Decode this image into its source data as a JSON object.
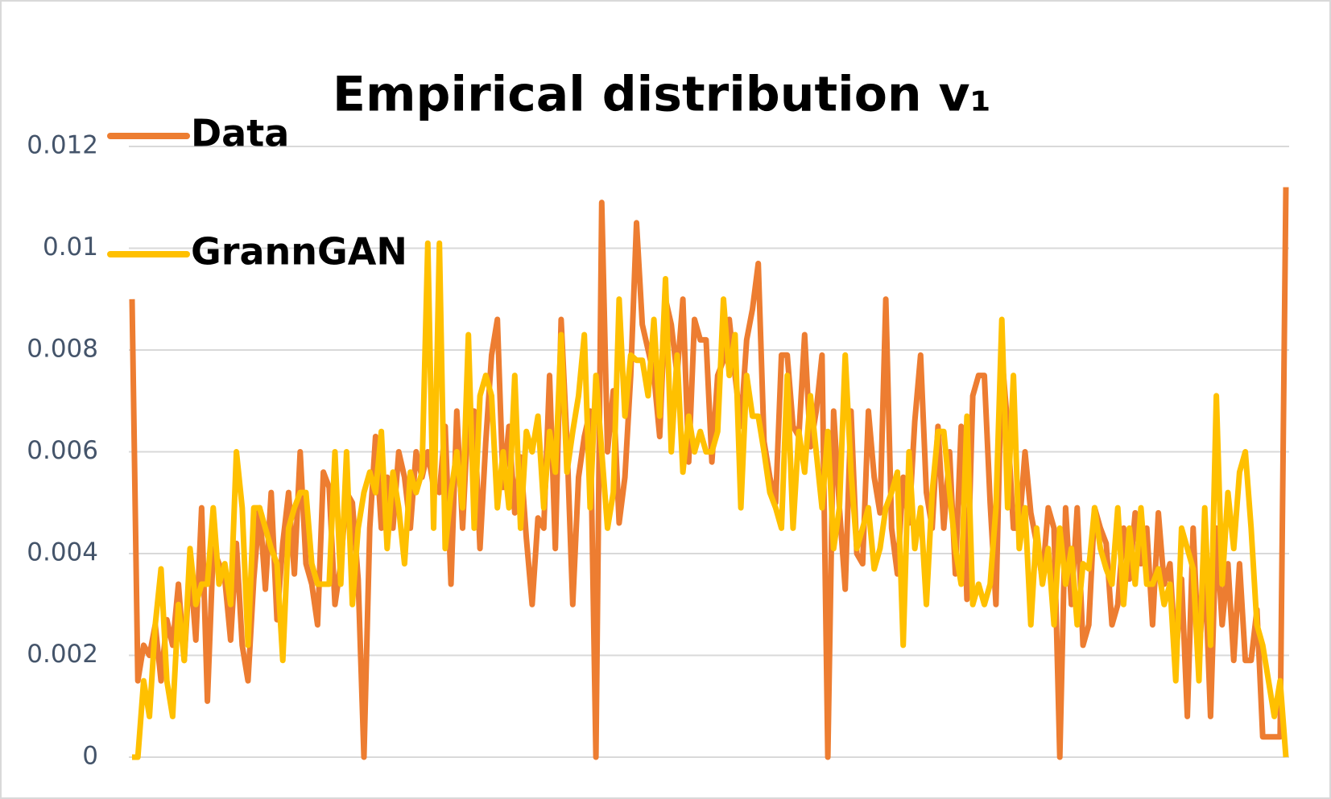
{
  "chart_data": {
    "type": "line",
    "title": "Empirical distribution v₁",
    "categories": [
      null,
      null,
      null,
      null,
      null,
      null,
      null,
      null,
      null,
      null,
      null,
      null,
      null,
      null,
      null,
      null,
      null,
      null,
      null,
      null,
      null,
      null,
      null,
      null,
      null,
      null,
      null,
      null,
      null,
      null,
      null,
      null,
      null,
      null,
      null,
      null,
      null,
      null,
      null,
      null,
      null,
      null,
      null,
      null,
      null,
      null,
      null,
      null,
      null,
      null,
      null,
      null,
      null,
      null,
      null,
      null,
      null,
      null,
      null,
      null,
      null,
      null,
      null,
      null,
      null,
      null,
      null,
      null,
      null,
      null,
      null,
      null,
      null,
      null,
      null,
      null,
      null,
      null,
      null,
      null,
      null,
      null,
      null,
      null,
      null,
      null,
      null,
      null,
      null,
      null,
      null,
      null,
      null,
      null,
      null,
      null,
      null,
      null,
      null,
      null,
      null,
      null,
      null,
      null,
      null,
      null,
      null,
      null,
      null,
      null,
      null,
      null,
      null,
      null,
      null,
      null,
      null,
      null,
      null,
      null,
      null,
      null,
      null,
      null,
      null,
      null,
      null,
      null,
      null,
      null,
      null,
      null,
      null,
      null,
      null,
      null,
      null,
      null,
      null,
      null,
      null,
      null,
      null,
      null,
      null,
      null,
      null,
      null,
      null,
      null,
      null,
      null,
      null,
      null,
      null,
      null,
      null,
      null,
      null,
      null,
      null,
      null,
      null,
      null,
      null,
      null,
      null,
      null,
      null,
      null,
      null,
      null,
      null,
      null,
      null,
      null,
      null,
      null,
      null,
      null,
      null,
      null,
      null,
      null,
      null,
      null,
      null,
      null,
      null,
      null,
      null,
      null,
      null,
      null,
      null,
      null,
      null,
      null,
      null,
      null
    ],
    "series": [
      {
        "name": "Data",
        "color": "#ed7d31",
        "values": [
          0.009,
          0.0015,
          0.0022,
          0.002,
          0.0026,
          0.0015,
          0.0027,
          0.0022,
          0.0034,
          0.0019,
          0.0038,
          0.0023,
          0.0049,
          0.0011,
          0.0041,
          0.0038,
          0.0035,
          0.0023,
          0.0042,
          0.0022,
          0.0015,
          0.0035,
          0.0049,
          0.0033,
          0.0052,
          0.0027,
          0.0042,
          0.0052,
          0.0036,
          0.006,
          0.0038,
          0.0034,
          0.0026,
          0.0056,
          0.0053,
          0.003,
          0.0038,
          0.0052,
          0.005,
          0.0035,
          0,
          0.0045,
          0.0063,
          0.0045,
          0.0055,
          0.0045,
          0.006,
          0.0055,
          0.0045,
          0.006,
          0.0055,
          0.006,
          0.0053,
          0.0052,
          0.0065,
          0.0034,
          0.0068,
          0.0045,
          0.0068,
          0.0068,
          0.0041,
          0.0062,
          0.0079,
          0.0086,
          0.0053,
          0.0065,
          0.0048,
          0.0059,
          0.0043,
          0.003,
          0.0047,
          0.0045,
          0.0075,
          0.0041,
          0.0086,
          0.0062,
          0.003,
          0.0055,
          0.0063,
          0.0068,
          0,
          0.0109,
          0.006,
          0.0072,
          0.0046,
          0.0055,
          0.0075,
          0.0105,
          0.0085,
          0.008,
          0.0075,
          0.0063,
          0.009,
          0.0085,
          0.0075,
          0.009,
          0.0058,
          0.0086,
          0.0082,
          0.0082,
          0.0058,
          0.0075,
          0.0078,
          0.0086,
          0.0075,
          0.0065,
          0.0082,
          0.0088,
          0.0097,
          0.0062,
          0.0055,
          0.005,
          0.0079,
          0.0079,
          0.0065,
          0.0063,
          0.0083,
          0.0061,
          0.0068,
          0.0079,
          0,
          0.0068,
          0.0049,
          0.0033,
          0.0068,
          0.004,
          0.0038,
          0.0068,
          0.0055,
          0.0048,
          0.009,
          0.0045,
          0.0036,
          0.0055,
          0.0046,
          0.0066,
          0.0079,
          0.0052,
          0.0045,
          0.0065,
          0.0045,
          0.006,
          0.0036,
          0.0065,
          0.0031,
          0.0071,
          0.0075,
          0.0075,
          0.005,
          0.003,
          0.0079,
          0.0065,
          0.0045,
          0.0045,
          0.006,
          0.0048,
          0.0042,
          0.0035,
          0.0049,
          0.0045,
          0,
          0.0049,
          0.003,
          0.0049,
          0.0022,
          0.0026,
          0.0049,
          0.0045,
          0.0042,
          0.0026,
          0.003,
          0.0045,
          0.0035,
          0.0048,
          0.0038,
          0.0045,
          0.0026,
          0.0048,
          0.0034,
          0.0038,
          0.0019,
          0.0035,
          0.0008,
          0.0045,
          0.0019,
          0.0038,
          0.0008,
          0.0045,
          0.0026,
          0.0038,
          0.0019,
          0.0038,
          0.0019,
          0.0019,
          0.0029,
          0.0004,
          0.0004,
          0.0004,
          0.0004,
          0.0112
        ]
      },
      {
        "name": "GrannGAN",
        "color": "#ffc000",
        "values": [
          0,
          0,
          0.0015,
          0.0008,
          0.0026,
          0.0037,
          0.0015,
          0.0008,
          0.003,
          0.0019,
          0.0041,
          0.003,
          0.0034,
          0.0034,
          0.0049,
          0.0034,
          0.0038,
          0.003,
          0.006,
          0.0049,
          0.0022,
          0.0049,
          0.0049,
          0.0045,
          0.0041,
          0.0038,
          0.0019,
          0.0045,
          0.0049,
          0.0052,
          0.0052,
          0.0038,
          0.0034,
          0.0034,
          0.0034,
          0.006,
          0.0034,
          0.006,
          0.003,
          0.0045,
          0.0052,
          0.0056,
          0.0052,
          0.0064,
          0.0041,
          0.0056,
          0.0049,
          0.0038,
          0.0056,
          0.0052,
          0.0056,
          0.0101,
          0.0045,
          0.0101,
          0.0041,
          0.0052,
          0.006,
          0.0049,
          0.0083,
          0.0045,
          0.0071,
          0.0075,
          0.0071,
          0.0049,
          0.006,
          0.0049,
          0.0075,
          0.0045,
          0.0064,
          0.006,
          0.0067,
          0.0049,
          0.0064,
          0.0056,
          0.0083,
          0.0056,
          0.0064,
          0.0071,
          0.0083,
          0.0049,
          0.0075,
          0.006,
          0.0045,
          0.0052,
          0.009,
          0.0067,
          0.0079,
          0.0078,
          0.0078,
          0.0071,
          0.0086,
          0.0067,
          0.0094,
          0.006,
          0.0079,
          0.0056,
          0.0067,
          0.006,
          0.0064,
          0.006,
          0.006,
          0.0064,
          0.009,
          0.0075,
          0.0083,
          0.0049,
          0.0075,
          0.0067,
          0.0067,
          0.006,
          0.0052,
          0.0049,
          0.0045,
          0.0075,
          0.0045,
          0.0064,
          0.0056,
          0.0071,
          0.006,
          0.0049,
          0.0064,
          0.0041,
          0.0049,
          0.0079,
          0.0056,
          0.0041,
          0.0045,
          0.0049,
          0.0037,
          0.0041,
          0.0049,
          0.0052,
          0.0056,
          0.0022,
          0.006,
          0.0041,
          0.0049,
          0.003,
          0.0052,
          0.0064,
          0.0064,
          0.0052,
          0.0041,
          0.0034,
          0.0067,
          0.003,
          0.0034,
          0.003,
          0.0034,
          0.0049,
          0.0086,
          0.0049,
          0.0075,
          0.0041,
          0.0049,
          0.0026,
          0.0045,
          0.0034,
          0.0041,
          0.0026,
          0.0045,
          0.0034,
          0.0041,
          0.0026,
          0.0038,
          0.0037,
          0.0049,
          0.0041,
          0.0037,
          0.0034,
          0.0049,
          0.003,
          0.0045,
          0.0034,
          0.0049,
          0.0034,
          0.0034,
          0.0037,
          0.003,
          0.0034,
          0.0015,
          0.0045,
          0.0041,
          0.0037,
          0.0015,
          0.0049,
          0.0022,
          0.0071,
          0.0034,
          0.0052,
          0.0041,
          0.0056,
          0.006,
          0.0045,
          0.0026,
          0.0022,
          0.0015,
          0.0008,
          0.0015,
          0
        ]
      }
    ],
    "ylim": [
      0,
      0.012
    ],
    "yticks": [
      0,
      0.002,
      0.004,
      0.006,
      0.008,
      0.01,
      0.012
    ],
    "grid": true,
    "legend": "top-left"
  }
}
